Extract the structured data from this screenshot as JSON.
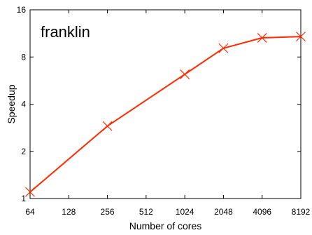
{
  "chart_data": {
    "type": "line",
    "title": "franklin",
    "xlabel": "Number of cores",
    "ylabel": "Speedup",
    "x_scale": "log2",
    "y_scale": "log2",
    "x_ticks": [
      "64",
      "128",
      "256",
      "512",
      "1024",
      "2048",
      "4096",
      "8192"
    ],
    "y_ticks": [
      "1",
      "2",
      "4",
      "8",
      "16"
    ],
    "xlim": [
      64,
      8192
    ],
    "ylim": [
      1,
      16
    ],
    "series": [
      {
        "color": "#ff2a00",
        "marker": "x",
        "x": [
          64,
          256,
          1024,
          2048,
          4096,
          8192
        ],
        "y": [
          1.1,
          2.9,
          6.2,
          9.1,
          10.6,
          10.8
        ]
      }
    ],
    "grid": false,
    "legend": "none"
  }
}
